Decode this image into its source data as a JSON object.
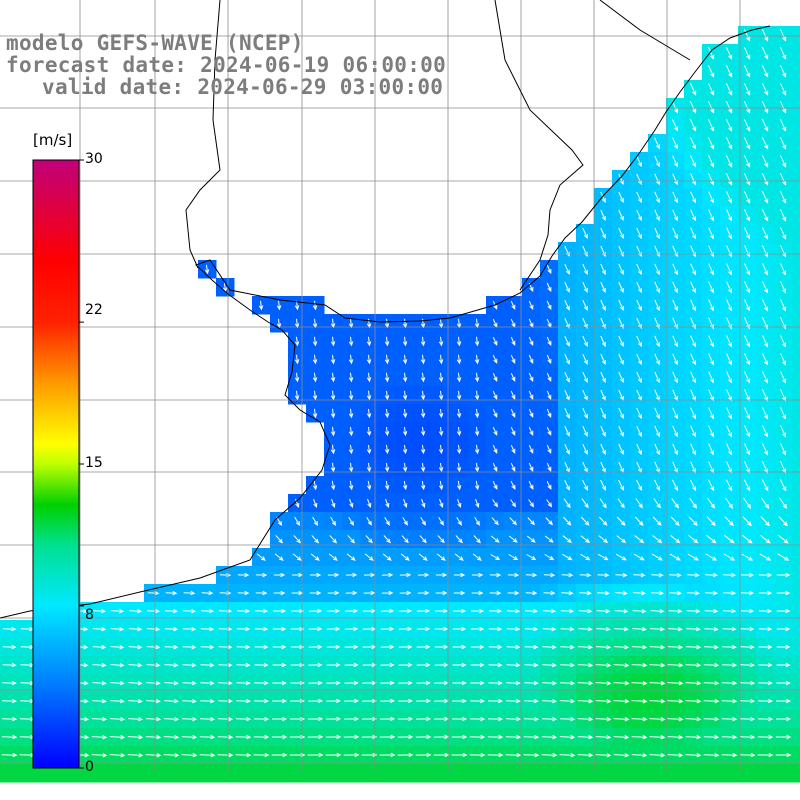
{
  "title": {
    "line1": "modelo GEFS-WAVE (NCEP)",
    "line2": "forecast date: 2024-06-19 06:00:00",
    "line3": "valid date: 2024-06-29 03:00:00"
  },
  "colorbar": {
    "units": "[m/s]",
    "min": 0,
    "max": 30,
    "ticks": [
      {
        "label": "30",
        "value": 30
      },
      {
        "label": "22",
        "value": 22
      },
      {
        "label": "15",
        "value": 15
      },
      {
        "label": "8",
        "value": 8
      },
      {
        "label": "0",
        "value": 0
      }
    ],
    "stops": [
      {
        "value": 0,
        "color": "#0000ff"
      },
      {
        "value": 4,
        "color": "#0078ff"
      },
      {
        "value": 8,
        "color": "#00e8ff"
      },
      {
        "value": 11,
        "color": "#00e090"
      },
      {
        "value": 13,
        "color": "#00d000"
      },
      {
        "value": 15,
        "color": "#bfff00"
      },
      {
        "value": 16,
        "color": "#ffff00"
      },
      {
        "value": 19,
        "color": "#ff9900"
      },
      {
        "value": 22,
        "color": "#ff2200"
      },
      {
        "value": 25,
        "color": "#ff0000"
      },
      {
        "value": 30,
        "color": "#c0007a"
      }
    ]
  },
  "colors": {
    "land": "#ffffff",
    "coast": "#000000",
    "grid": "#8c8c8c",
    "arrow": "#ffffff",
    "title_text": "#7d7d7d"
  },
  "chart_data": {
    "type": "heatmap",
    "description": "Wind speed field with direction arrows; calm blue (~2-5 m/s) in the bay, cyan (~7-9 m/s) offshore to the NE, green (~10-12 m/s) in the south",
    "value_range": [
      0,
      30
    ]
  }
}
